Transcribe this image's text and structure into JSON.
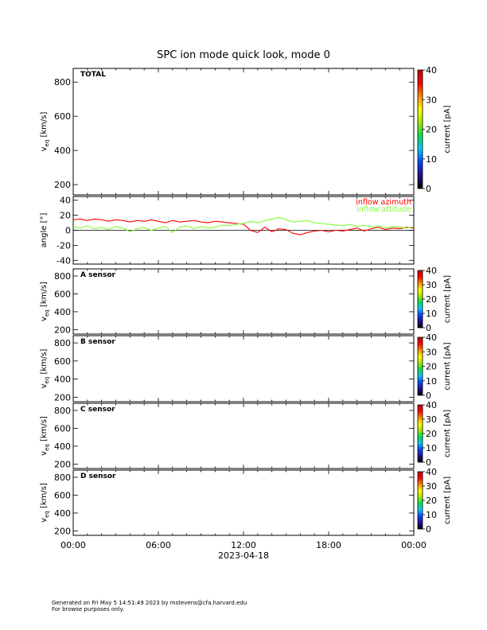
{
  "chart_data": {
    "type": "line",
    "title": "SPC ion mode quick look, mode 0",
    "x": {
      "label": "2023-04-18",
      "ticks": [
        "00:00",
        "06:00",
        "12:00",
        "18:00",
        "00:00"
      ],
      "range_hours": [
        0,
        24
      ]
    },
    "colorbar": {
      "label": "current [pA]",
      "ticks": [
        0,
        10,
        20,
        30,
        40
      ],
      "range": [
        0,
        40
      ],
      "colors": [
        "#000000",
        "#2a0c8c",
        "#0047ff",
        "#00c8ff",
        "#00e050",
        "#a8e800",
        "#ffff00",
        "#ff8c00",
        "#ff0000",
        "#c00000"
      ]
    },
    "panels": [
      {
        "type": "spectrogram",
        "label": "TOTAL",
        "ylabel_main": "v",
        "ylabel_sub": "eq",
        "ylabel_unit": "[km/s]",
        "yticks": [
          200,
          400,
          600,
          800
        ],
        "ylim": [
          140,
          880
        ]
      },
      {
        "type": "line",
        "ylabel": "angle [°]",
        "yticks": [
          -40,
          -20,
          0,
          20,
          40
        ],
        "ylim": [
          -45,
          45
        ],
        "series": [
          {
            "name": "inflow azimuth",
            "color": "#ff0000",
            "x": [
              0,
              0.5,
              1,
              1.5,
              2,
              2.5,
              3,
              3.5,
              4,
              4.5,
              5,
              5.5,
              6,
              6.5,
              7,
              7.5,
              8,
              8.5,
              9,
              9.5,
              10,
              10.5,
              11,
              11.5,
              12,
              12.5,
              13,
              13.5,
              14,
              14.5,
              15,
              15.5,
              16,
              16.5,
              17,
              17.5,
              18,
              18.5,
              19,
              19.5,
              20,
              20.5,
              21,
              21.5,
              22,
              22.5,
              23,
              23.5,
              24
            ],
            "y": [
              14,
              15,
              13,
              15,
              14,
              12,
              14,
              13,
              11,
              13,
              12,
              14,
              12,
              10,
              13,
              11,
              12,
              13,
              11,
              10,
              12,
              11,
              10,
              9,
              8,
              0,
              -3,
              4,
              -2,
              2,
              1,
              -4,
              -6,
              -3,
              -1,
              0,
              -2,
              0,
              -1,
              1,
              3,
              -1,
              2,
              4,
              1,
              3,
              2,
              4,
              3
            ]
          },
          {
            "name": "inflow attitude",
            "color": "#7cff33",
            "x": [
              0,
              0.5,
              1,
              1.5,
              2,
              2.5,
              3,
              3.5,
              4,
              4.5,
              5,
              5.5,
              6,
              6.5,
              7,
              7.5,
              8,
              8.5,
              9,
              9.5,
              10,
              10.5,
              11,
              11.5,
              12,
              12.5,
              13,
              13.5,
              14,
              14.5,
              15,
              15.5,
              16,
              16.5,
              17,
              17.5,
              18,
              18.5,
              19,
              19.5,
              20,
              20.5,
              21,
              21.5,
              22,
              22.5,
              23,
              23.5,
              24
            ],
            "y": [
              5,
              3,
              6,
              2,
              4,
              1,
              5,
              3,
              -2,
              2,
              4,
              0,
              3,
              5,
              -3,
              4,
              6,
              2,
              5,
              3,
              4,
              7,
              6,
              8,
              9,
              12,
              10,
              13,
              15,
              17,
              14,
              11,
              12,
              13,
              10,
              9,
              8,
              7,
              6,
              8,
              5,
              7,
              4,
              6,
              3,
              5,
              4,
              3,
              5
            ]
          }
        ]
      },
      {
        "type": "spectrogram",
        "label": "A sensor",
        "ylabel_main": "v",
        "ylabel_sub": "eq",
        "ylabel_unit": "[km/s]",
        "yticks": [
          200,
          400,
          600,
          800
        ],
        "ylim": [
          150,
          880
        ]
      },
      {
        "type": "spectrogram",
        "label": "B sensor",
        "ylabel_main": "v",
        "ylabel_sub": "eq",
        "ylabel_unit": "[km/s]",
        "yticks": [
          200,
          400,
          600,
          800
        ],
        "ylim": [
          150,
          880
        ]
      },
      {
        "type": "spectrogram",
        "label": "C sensor",
        "ylabel_main": "v",
        "ylabel_sub": "eq",
        "ylabel_unit": "[km/s]",
        "yticks": [
          200,
          400,
          600,
          800
        ],
        "ylim": [
          150,
          880
        ]
      },
      {
        "type": "spectrogram",
        "label": "D sensor",
        "ylabel_main": "v",
        "ylabel_sub": "eq",
        "ylabel_unit": "[km/s]",
        "yticks": [
          200,
          400,
          600,
          800
        ],
        "ylim": [
          150,
          880
        ]
      }
    ],
    "grid": false
  },
  "footer": {
    "line1": "Generated on Fri May  5 14:51:49 2023 by mstevens@cfa.harvard.edu",
    "line2": "For browse purposes only."
  }
}
